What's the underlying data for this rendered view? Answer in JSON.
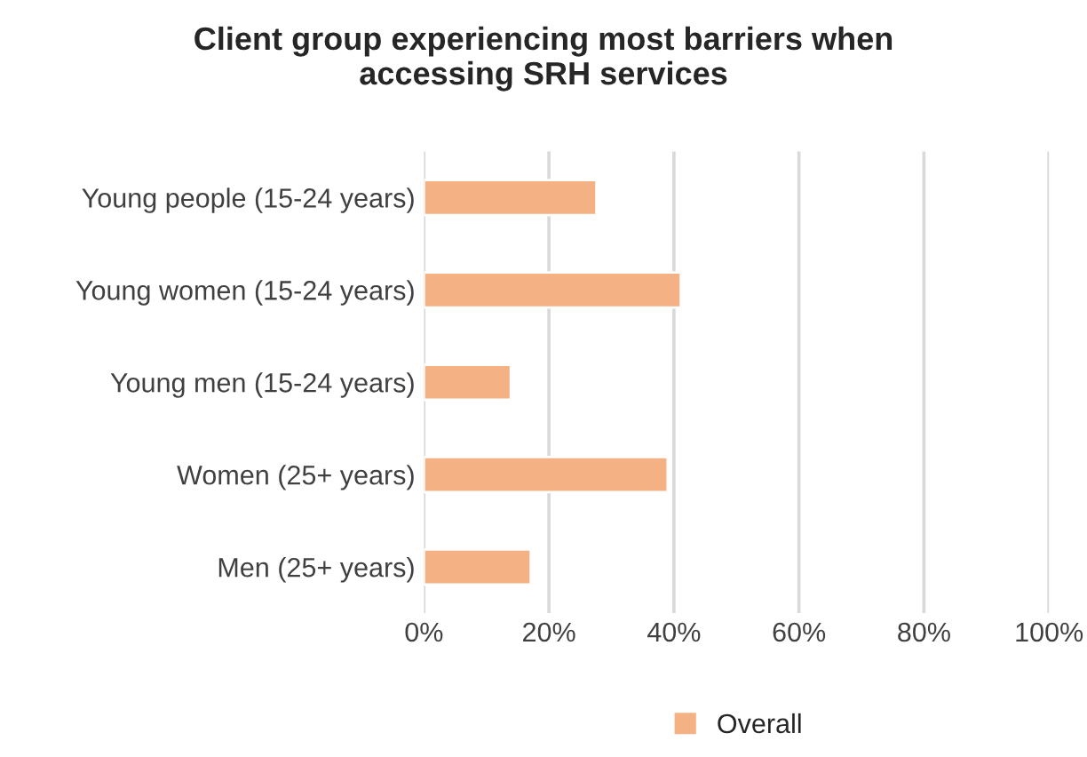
{
  "chart_data": {
    "type": "bar",
    "orientation": "horizontal",
    "title": "Client group experiencing most barriers when\naccessing SRH services",
    "categories": [
      "Young people (15-24 years)",
      "Young women (15-24 years)",
      "Young men (15-24 years)",
      "Women (25+ years)",
      "Men (25+ years)"
    ],
    "series": [
      {
        "name": "Overall",
        "color": "#f4b183",
        "values": [
          27.6,
          41.1,
          13.9,
          39,
          17.1
        ]
      }
    ],
    "xlim": [
      0,
      100
    ],
    "xticks": [
      {
        "value": 0,
        "label": "0%"
      },
      {
        "value": 20,
        "label": "20%"
      },
      {
        "value": 40,
        "label": "40%"
      },
      {
        "value": 60,
        "label": "60%"
      },
      {
        "value": 80,
        "label": "80%"
      },
      {
        "value": 100,
        "label": "100%"
      }
    ],
    "grid": "x",
    "legend": "bottom"
  }
}
